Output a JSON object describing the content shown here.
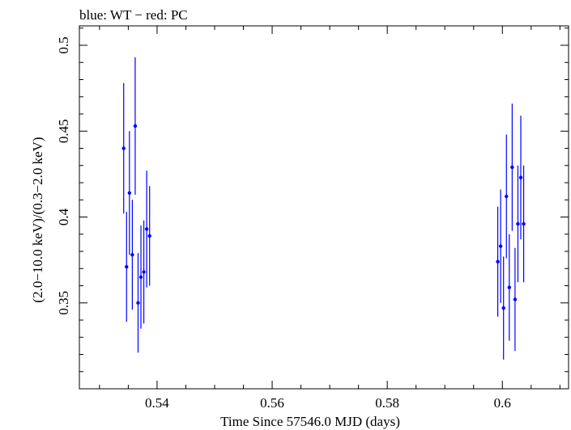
{
  "chart_data": {
    "type": "scatter",
    "title": "blue: WT − red: PC",
    "xlabel": "Time Since 57546.0 MJD (days)",
    "ylabel": "(2.0−10.0 keV)/(0.3−2.0 keV)",
    "xlim": [
      0.5265,
      0.6115
    ],
    "ylim": [
      0.3,
      0.5113
    ],
    "x_ticks": [
      0.54,
      0.56,
      0.58,
      0.6
    ],
    "x_tick_labels": [
      "0.54",
      "0.56",
      "0.58",
      "0.6"
    ],
    "y_ticks": [
      0.35,
      0.4,
      0.45,
      0.5
    ],
    "y_tick_labels": [
      "0.35",
      "0.4",
      "0.45",
      "0.5"
    ],
    "colors": {
      "WT": "#0000ff",
      "PC": "#ff0000",
      "axes": "#000000"
    },
    "series": [
      {
        "name": "WT",
        "color": "#0000ff",
        "points": [
          {
            "x": 0.5342,
            "y": 0.44,
            "err": 0.038
          },
          {
            "x": 0.5347,
            "y": 0.371,
            "err": 0.032
          },
          {
            "x": 0.5352,
            "y": 0.414,
            "err": 0.036
          },
          {
            "x": 0.5357,
            "y": 0.378,
            "err": 0.032
          },
          {
            "x": 0.5362,
            "y": 0.453,
            "err": 0.04
          },
          {
            "x": 0.5367,
            "y": 0.35,
            "err": 0.029
          },
          {
            "x": 0.5372,
            "y": 0.365,
            "err": 0.03
          },
          {
            "x": 0.5377,
            "y": 0.368,
            "err": 0.03
          },
          {
            "x": 0.5382,
            "y": 0.393,
            "err": 0.034
          },
          {
            "x": 0.5387,
            "y": 0.389,
            "err": 0.029
          },
          {
            "x": 0.5992,
            "y": 0.374,
            "err": 0.032
          },
          {
            "x": 0.5997,
            "y": 0.383,
            "err": 0.033
          },
          {
            "x": 0.6002,
            "y": 0.347,
            "err": 0.03
          },
          {
            "x": 0.6007,
            "y": 0.412,
            "err": 0.036
          },
          {
            "x": 0.6012,
            "y": 0.359,
            "err": 0.031
          },
          {
            "x": 0.6017,
            "y": 0.429,
            "err": 0.037
          },
          {
            "x": 0.6022,
            "y": 0.352,
            "err": 0.03
          },
          {
            "x": 0.6027,
            "y": 0.396,
            "err": 0.034
          },
          {
            "x": 0.6032,
            "y": 0.423,
            "err": 0.036
          },
          {
            "x": 0.6037,
            "y": 0.396,
            "err": 0.034
          }
        ]
      },
      {
        "name": "PC",
        "color": "#ff0000",
        "points": []
      }
    ]
  }
}
